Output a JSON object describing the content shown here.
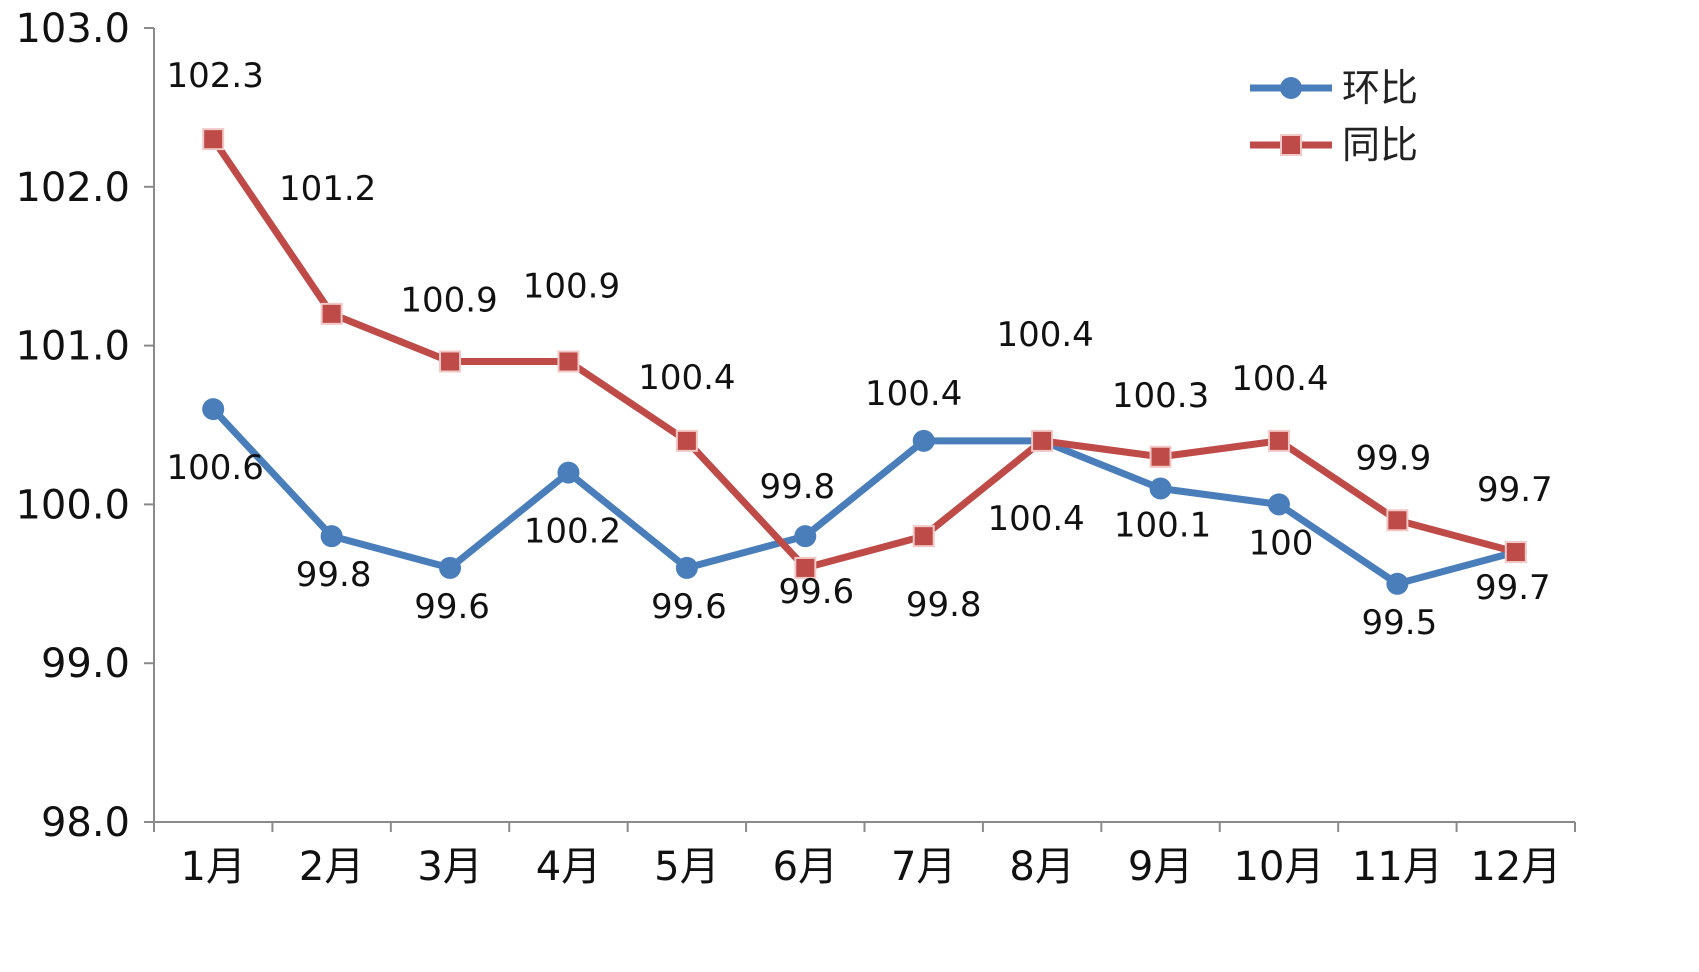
{
  "chart_data": {
    "type": "line",
    "categories": [
      "1月",
      "2月",
      "3月",
      "4月",
      "5月",
      "6月",
      "7月",
      "8月",
      "9月",
      "10月",
      "11月",
      "12月"
    ],
    "ylim": [
      98.0,
      103.0
    ],
    "yticks": [
      98.0,
      99.0,
      100.0,
      101.0,
      102.0,
      103.0
    ],
    "ytick_labels": [
      "98.0",
      "99.0",
      "100.0",
      "101.0",
      "102.0",
      "103.0"
    ],
    "grid": false,
    "legend_position": "top-right",
    "series": [
      {
        "name": "环比",
        "color": "#4a7ebb",
        "marker": "circle",
        "values": [
          100.6,
          99.8,
          99.6,
          100.2,
          99.6,
          99.8,
          100.4,
          100.4,
          100.1,
          100.0,
          99.5,
          99.7
        ],
        "labels": [
          "100.6",
          "99.8",
          "99.6",
          "100.2",
          "99.6",
          "99.8",
          "100.4",
          "100.4",
          "100.1",
          "100",
          "99.5",
          "99.7"
        ]
      },
      {
        "name": "同比",
        "color": "#be4b48",
        "marker": "square",
        "values": [
          102.3,
          101.2,
          100.9,
          100.9,
          100.4,
          99.6,
          99.8,
          100.4,
          100.3,
          100.4,
          99.9,
          99.7
        ],
        "labels": [
          "102.3",
          "101.2",
          "100.9",
          "100.9",
          "100.4",
          "99.6",
          "99.8",
          "100.4",
          "100.3",
          "100.4",
          "99.9",
          "99.7"
        ]
      }
    ]
  }
}
